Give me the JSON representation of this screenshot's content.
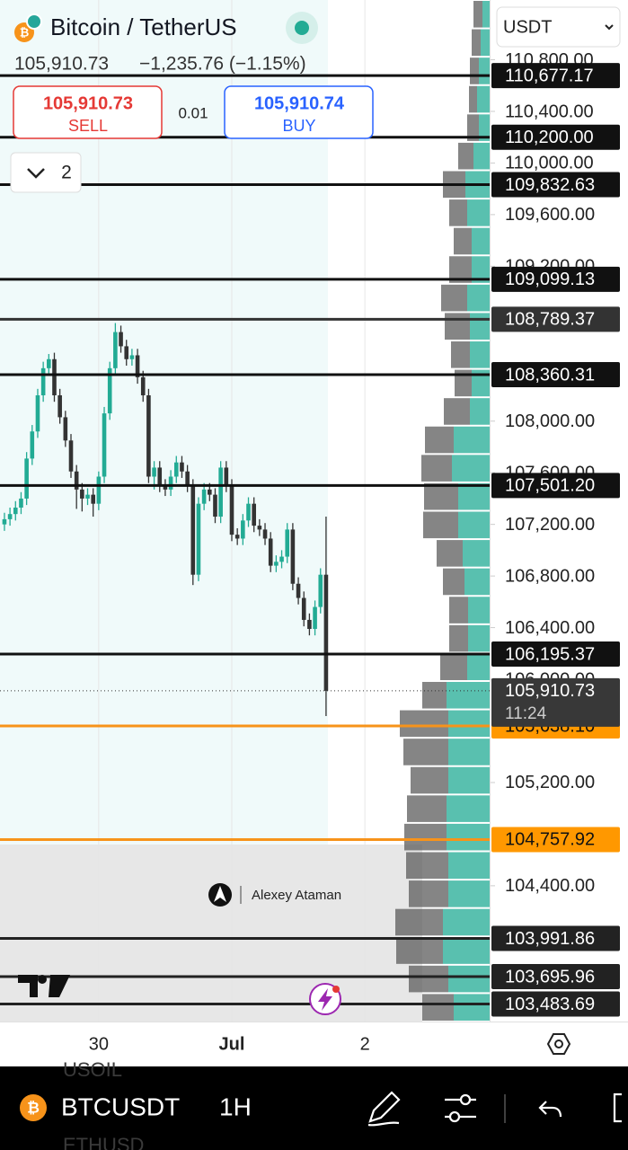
{
  "header": {
    "symbol": "Bitcoin / TetherUS",
    "currency": "USDT",
    "last": "105,910.73",
    "change": "−1,235.76 (−1.15%)"
  },
  "trade": {
    "sell_price": "105,910.73",
    "sell": "SELL",
    "spread": "0.01",
    "buy_price": "105,910.74",
    "buy": "BUY"
  },
  "indicators_count": "2",
  "watermark": "Alexey Ataman",
  "chart_data": {
    "type": "candlestick",
    "up_color": "#22ab94",
    "down_color": "#333333",
    "open": [
      107200,
      107240,
      107280,
      107330,
      107400,
      107710,
      107920,
      108200,
      108410,
      108480,
      108200,
      108030,
      107850,
      107610,
      107470,
      107400,
      107430,
      107360,
      107570,
      108060,
      108410,
      108690,
      108580,
      108480,
      108510,
      108340,
      108200,
      107570,
      107640,
      107500,
      107470,
      107570,
      107680,
      107610,
      107500,
      106810,
      107360,
      107470,
      107430,
      107260,
      107640,
      107500,
      107120,
      107090,
      107230,
      107360,
      107190,
      107160,
      107090,
      106880,
      106910,
      106950,
      107160,
      106740,
      106630,
      106460,
      106390,
      106560,
      106810
    ],
    "high": [
      107290,
      107330,
      107380,
      107450,
      107760,
      107970,
      108250,
      108460,
      108520,
      108530,
      108250,
      108080,
      107900,
      107660,
      107520,
      107480,
      107480,
      107610,
      108110,
      108460,
      108760,
      108740,
      108630,
      108560,
      108560,
      108390,
      108250,
      107690,
      107690,
      107550,
      107620,
      107730,
      107730,
      107660,
      107550,
      107410,
      107520,
      107520,
      107480,
      107690,
      107690,
      107550,
      107170,
      107280,
      107410,
      107410,
      107240,
      107210,
      107140,
      106960,
      107000,
      107210,
      107210,
      106790,
      106680,
      106510,
      106610,
      106860,
      107260
    ],
    "low": [
      107150,
      107190,
      107230,
      107280,
      107350,
      107660,
      107870,
      108150,
      108360,
      108150,
      107980,
      107800,
      107560,
      107320,
      107300,
      107350,
      107260,
      107310,
      107520,
      108010,
      108360,
      108530,
      108430,
      108430,
      108290,
      108150,
      107520,
      107470,
      107450,
      107420,
      107420,
      107520,
      107560,
      107450,
      106730,
      106760,
      107310,
      107380,
      107210,
      107210,
      107450,
      107070,
      107040,
      107040,
      107180,
      107140,
      107110,
      107040,
      106830,
      106830,
      106860,
      106900,
      106690,
      106580,
      106410,
      106340,
      106340,
      106510,
      105715
    ],
    "close": [
      107240,
      107280,
      107330,
      107400,
      107710,
      107920,
      108200,
      108410,
      108480,
      108200,
      108030,
      107850,
      107610,
      107470,
      107400,
      107430,
      107360,
      107570,
      108060,
      108410,
      108690,
      108580,
      108480,
      108510,
      108340,
      108200,
      107570,
      107640,
      107500,
      107470,
      107570,
      107680,
      107610,
      107500,
      106810,
      107360,
      107470,
      107430,
      107260,
      107640,
      107500,
      107120,
      107090,
      107230,
      107360,
      107190,
      107160,
      107090,
      106880,
      106910,
      106950,
      107160,
      106740,
      106630,
      106460,
      106390,
      106560,
      106810,
      105910.73
    ],
    "xlim": [
      -0.8,
      87.5
    ],
    "xticks": [
      {
        "value": 17,
        "label": "30"
      },
      {
        "value": 41,
        "label": "Jul"
      },
      {
        "value": 65,
        "label": "2"
      }
    ],
    "ylim": [
      103348,
      111263
    ],
    "yticks": [
      {
        "value": 110800,
        "label": "110,800.00"
      },
      {
        "value": 110400,
        "label": "110,400.00"
      },
      {
        "value": 110000,
        "label": "110,000.00"
      },
      {
        "value": 109600,
        "label": "109,600.00"
      },
      {
        "value": 109200,
        "label": "109,200.00"
      },
      {
        "value": 108000,
        "label": "108,000.00"
      },
      {
        "value": 107600,
        "label": "107,600.00"
      },
      {
        "value": 107200,
        "label": "107,200.00"
      },
      {
        "value": 106800,
        "label": "106,800.00"
      },
      {
        "value": 106400,
        "label": "106,400.00"
      },
      {
        "value": 106000,
        "label": "106,000.00"
      },
      {
        "value": 105200,
        "label": "105,200.00"
      },
      {
        "value": 104400,
        "label": "104,400.00"
      }
    ],
    "levels": [
      {
        "value": 110677.17,
        "label": "110,677.17",
        "color": "#111111"
      },
      {
        "value": 110200,
        "label": "110,200.00",
        "color": "#111111"
      },
      {
        "value": 109832.63,
        "label": "109,832.63",
        "color": "#111111"
      },
      {
        "value": 109099.13,
        "label": "109,099.13",
        "color": "#111111"
      },
      {
        "value": 108789.37,
        "label": "108,789.37",
        "color": "#333333"
      },
      {
        "value": 108360.31,
        "label": "108,360.31",
        "color": "#111111"
      },
      {
        "value": 107501.2,
        "label": "107,501.20",
        "color": "#111111"
      },
      {
        "value": 106195.37,
        "label": "106,195.37",
        "color": "#111111"
      },
      {
        "value": 105638.1,
        "label": "105,638.10",
        "color": "#f7931a"
      },
      {
        "value": 104757.92,
        "label": "104,757.92",
        "color": "#f7931a"
      },
      {
        "value": 103991.86,
        "label": "103,991.86",
        "color": "#222222"
      },
      {
        "value": 103695.96,
        "label": "103,695.96",
        "color": "#222222"
      },
      {
        "value": 103483.69,
        "label": "103,483.69",
        "color": "#222222"
      }
    ],
    "current": {
      "value": 105910.73,
      "label": "105,910.73",
      "countdown": "11:24"
    },
    "volume_profile": {
      "total": [
        18,
        20,
        22,
        23,
        25,
        35,
        52,
        45,
        40,
        45,
        54,
        50,
        43,
        39,
        51,
        72,
        76,
        73,
        74,
        59,
        52,
        45,
        45,
        55,
        75,
        100,
        96,
        88,
        92,
        95,
        93,
        90,
        105,
        104,
        90,
        75
      ],
      "up": [
        8,
        10,
        12,
        14,
        12,
        18,
        27,
        25,
        20,
        20,
        25,
        22,
        22,
        20,
        22,
        40,
        42,
        35,
        35,
        30,
        28,
        24,
        24,
        25,
        48,
        46,
        46,
        46,
        48,
        48,
        46,
        46,
        52,
        52,
        46,
        40
      ]
    }
  },
  "bottom_bar": {
    "symbol": "BTCUSDT",
    "interval": "1H",
    "ghost_top": "USOIL",
    "ghost_bottom": "ETHUSD"
  }
}
